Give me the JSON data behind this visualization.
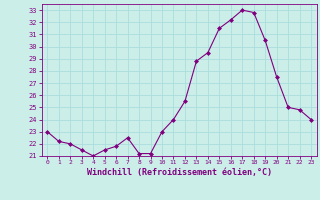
{
  "x": [
    0,
    1,
    2,
    3,
    4,
    5,
    6,
    7,
    8,
    9,
    10,
    11,
    12,
    13,
    14,
    15,
    16,
    17,
    18,
    19,
    20,
    21,
    22,
    23
  ],
  "y": [
    23.0,
    22.2,
    22.0,
    21.5,
    21.0,
    21.5,
    21.8,
    22.5,
    21.2,
    21.2,
    23.0,
    24.0,
    25.5,
    28.8,
    29.5,
    31.5,
    32.2,
    33.0,
    32.8,
    30.5,
    27.5,
    25.0,
    24.8,
    24.0
  ],
  "line_color": "#800080",
  "marker": "D",
  "marker_size": 2,
  "bg_color": "#cceee8",
  "grid_color": "#aadddd",
  "xlabel": "Windchill (Refroidissement éolien,°C)",
  "ylabel": "",
  "ylim": [
    21,
    33.5
  ],
  "yticks": [
    21,
    22,
    23,
    24,
    25,
    26,
    27,
    28,
    29,
    30,
    31,
    32,
    33
  ],
  "xticks": [
    0,
    1,
    2,
    3,
    4,
    5,
    6,
    7,
    8,
    9,
    10,
    11,
    12,
    13,
    14,
    15,
    16,
    17,
    18,
    19,
    20,
    21,
    22,
    23
  ],
  "title_color": "#800080",
  "axis_color": "#800080",
  "tick_color": "#800080",
  "xlabel_fontsize": 6,
  "xtick_fontsize": 4.5,
  "ytick_fontsize": 5
}
